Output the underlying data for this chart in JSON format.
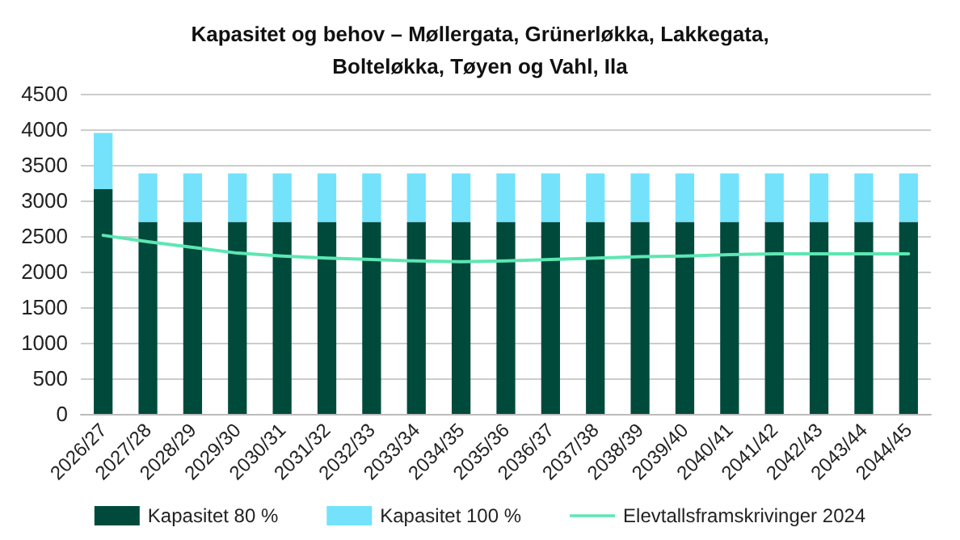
{
  "chart_data": {
    "type": "bar",
    "title": "Kapasitet og behov – Møllergata, Grünerløkka, Lakkegata,\nBolteløkka, Tøyen og Vahl, Ila",
    "categories": [
      "2026/27",
      "2027/28",
      "2028/29",
      "2029/30",
      "2030/31",
      "2031/32",
      "2032/33",
      "2033/34",
      "2034/35",
      "2035/36",
      "2036/37",
      "2037/38",
      "2038/39",
      "2039/40",
      "2040/41",
      "2041/42",
      "2042/43",
      "2043/44",
      "2044/45"
    ],
    "stacked": true,
    "series": [
      {
        "name": "Kapasitet 80 %",
        "color": "#004a3c",
        "values": [
          3160,
          2700,
          2700,
          2700,
          2700,
          2700,
          2700,
          2700,
          2700,
          2700,
          2700,
          2700,
          2700,
          2700,
          2700,
          2700,
          2700,
          2700,
          2700
        ]
      },
      {
        "name": "Kapasitet 100 %",
        "color": "#74e2fb",
        "values": [
          790,
          680,
          680,
          680,
          680,
          680,
          680,
          680,
          680,
          680,
          680,
          680,
          680,
          680,
          680,
          680,
          680,
          680,
          680
        ]
      },
      {
        "name": "Elevtallsframskrivinger 2024",
        "type": "line",
        "color": "#5ee6b2",
        "values": [
          2510,
          2420,
          2340,
          2260,
          2220,
          2190,
          2170,
          2150,
          2140,
          2150,
          2170,
          2190,
          2210,
          2220,
          2240,
          2250,
          2250,
          2250,
          2250
        ]
      }
    ],
    "ylim": [
      0,
      4500
    ],
    "yticks": [
      0,
      500,
      1000,
      1500,
      2000,
      2500,
      3000,
      3500,
      4000,
      4500
    ],
    "grid": "y",
    "legend": "bottom",
    "marker": "none",
    "line_style": "solid"
  }
}
